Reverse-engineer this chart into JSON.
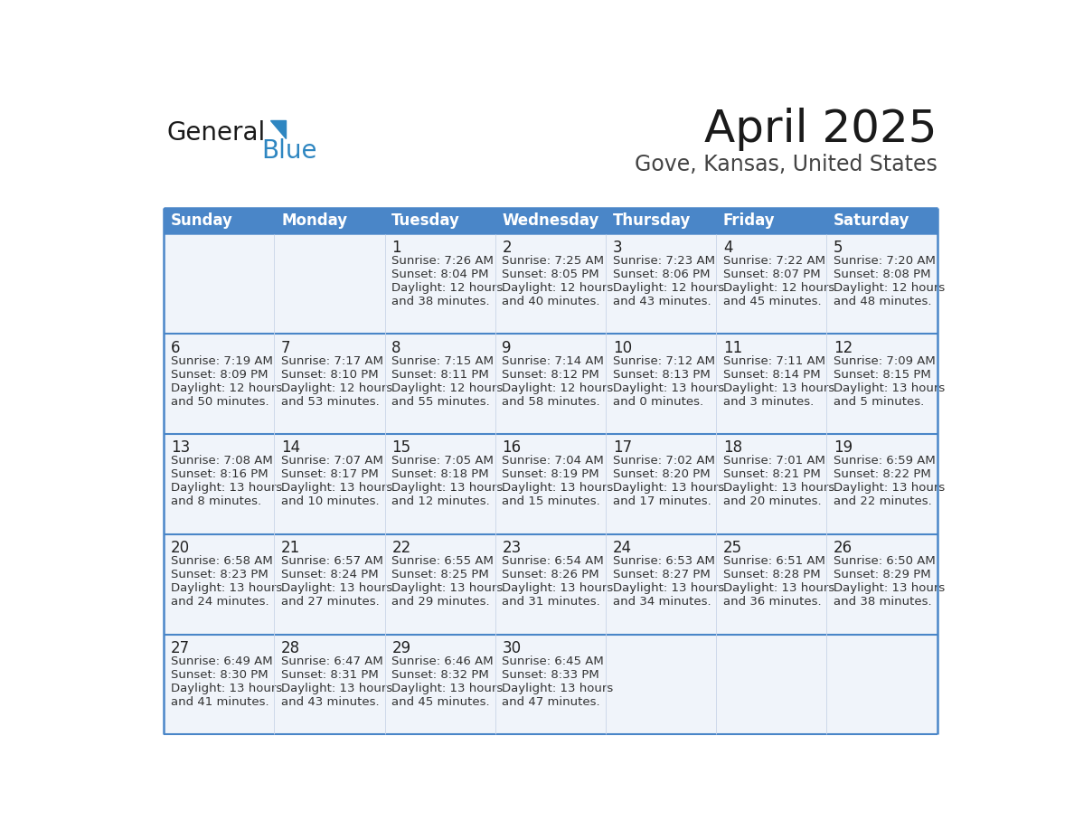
{
  "title": "April 2025",
  "subtitle": "Gove, Kansas, United States",
  "header_bg": "#4a86c8",
  "header_text": "#ffffff",
  "cell_bg": "#f0f4fa",
  "empty_bg": "#f8f9fc",
  "border_color": "#4a86c8",
  "day_headers": [
    "Sunday",
    "Monday",
    "Tuesday",
    "Wednesday",
    "Thursday",
    "Friday",
    "Saturday"
  ],
  "calendar_data": [
    [
      "",
      "",
      "1\nSunrise: 7:26 AM\nSunset: 8:04 PM\nDaylight: 12 hours\nand 38 minutes.",
      "2\nSunrise: 7:25 AM\nSunset: 8:05 PM\nDaylight: 12 hours\nand 40 minutes.",
      "3\nSunrise: 7:23 AM\nSunset: 8:06 PM\nDaylight: 12 hours\nand 43 minutes.",
      "4\nSunrise: 7:22 AM\nSunset: 8:07 PM\nDaylight: 12 hours\nand 45 minutes.",
      "5\nSunrise: 7:20 AM\nSunset: 8:08 PM\nDaylight: 12 hours\nand 48 minutes."
    ],
    [
      "6\nSunrise: 7:19 AM\nSunset: 8:09 PM\nDaylight: 12 hours\nand 50 minutes.",
      "7\nSunrise: 7:17 AM\nSunset: 8:10 PM\nDaylight: 12 hours\nand 53 minutes.",
      "8\nSunrise: 7:15 AM\nSunset: 8:11 PM\nDaylight: 12 hours\nand 55 minutes.",
      "9\nSunrise: 7:14 AM\nSunset: 8:12 PM\nDaylight: 12 hours\nand 58 minutes.",
      "10\nSunrise: 7:12 AM\nSunset: 8:13 PM\nDaylight: 13 hours\nand 0 minutes.",
      "11\nSunrise: 7:11 AM\nSunset: 8:14 PM\nDaylight: 13 hours\nand 3 minutes.",
      "12\nSunrise: 7:09 AM\nSunset: 8:15 PM\nDaylight: 13 hours\nand 5 minutes."
    ],
    [
      "13\nSunrise: 7:08 AM\nSunset: 8:16 PM\nDaylight: 13 hours\nand 8 minutes.",
      "14\nSunrise: 7:07 AM\nSunset: 8:17 PM\nDaylight: 13 hours\nand 10 minutes.",
      "15\nSunrise: 7:05 AM\nSunset: 8:18 PM\nDaylight: 13 hours\nand 12 minutes.",
      "16\nSunrise: 7:04 AM\nSunset: 8:19 PM\nDaylight: 13 hours\nand 15 minutes.",
      "17\nSunrise: 7:02 AM\nSunset: 8:20 PM\nDaylight: 13 hours\nand 17 minutes.",
      "18\nSunrise: 7:01 AM\nSunset: 8:21 PM\nDaylight: 13 hours\nand 20 minutes.",
      "19\nSunrise: 6:59 AM\nSunset: 8:22 PM\nDaylight: 13 hours\nand 22 minutes."
    ],
    [
      "20\nSunrise: 6:58 AM\nSunset: 8:23 PM\nDaylight: 13 hours\nand 24 minutes.",
      "21\nSunrise: 6:57 AM\nSunset: 8:24 PM\nDaylight: 13 hours\nand 27 minutes.",
      "22\nSunrise: 6:55 AM\nSunset: 8:25 PM\nDaylight: 13 hours\nand 29 minutes.",
      "23\nSunrise: 6:54 AM\nSunset: 8:26 PM\nDaylight: 13 hours\nand 31 minutes.",
      "24\nSunrise: 6:53 AM\nSunset: 8:27 PM\nDaylight: 13 hours\nand 34 minutes.",
      "25\nSunrise: 6:51 AM\nSunset: 8:28 PM\nDaylight: 13 hours\nand 36 minutes.",
      "26\nSunrise: 6:50 AM\nSunset: 8:29 PM\nDaylight: 13 hours\nand 38 minutes."
    ],
    [
      "27\nSunrise: 6:49 AM\nSunset: 8:30 PM\nDaylight: 13 hours\nand 41 minutes.",
      "28\nSunrise: 6:47 AM\nSunset: 8:31 PM\nDaylight: 13 hours\nand 43 minutes.",
      "29\nSunrise: 6:46 AM\nSunset: 8:32 PM\nDaylight: 13 hours\nand 45 minutes.",
      "30\nSunrise: 6:45 AM\nSunset: 8:33 PM\nDaylight: 13 hours\nand 47 minutes.",
      "",
      "",
      ""
    ]
  ],
  "logo_general_color": "#1a1a1a",
  "logo_blue_color": "#2e86c1",
  "title_color": "#1a1a1a",
  "subtitle_color": "#444444",
  "title_fontsize": 36,
  "subtitle_fontsize": 17,
  "header_fontsize": 12,
  "day_num_fontsize": 12,
  "cell_text_fontsize": 9.5
}
